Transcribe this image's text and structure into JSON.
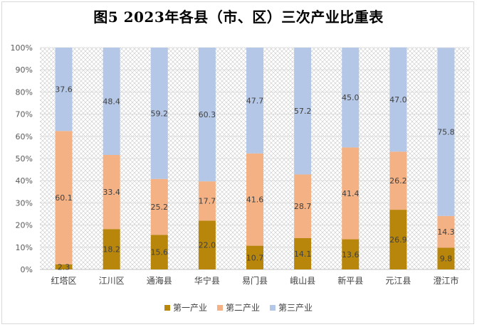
{
  "colors": {
    "primary": "#B8860B",
    "secondary": "#F4B183",
    "tertiary": "#B4C7E7"
  },
  "chart_data": {
    "type": "bar",
    "stacked": true,
    "title": "图5    2023年各县（市、区）三次产业比重表",
    "categories": [
      "红塔区",
      "江川区",
      "通海县",
      "华宁县",
      "易门县",
      "峨山县",
      "新平县",
      "元江县",
      "澄江市"
    ],
    "series": [
      {
        "name": "第一产业",
        "values": [
          2.3,
          18.2,
          15.6,
          22.0,
          10.7,
          14.1,
          13.6,
          26.9,
          9.8
        ]
      },
      {
        "name": "第二产业",
        "values": [
          60.1,
          33.4,
          25.2,
          17.7,
          41.6,
          28.7,
          41.4,
          26.2,
          14.3
        ]
      },
      {
        "name": "第三产业",
        "values": [
          37.6,
          48.4,
          59.2,
          60.3,
          47.7,
          57.2,
          45.0,
          47.0,
          75.8
        ]
      }
    ],
    "y_ticks": [
      "0%",
      "10%",
      "20%",
      "30%",
      "40%",
      "50%",
      "60%",
      "70%",
      "80%",
      "90%",
      "100%"
    ],
    "ylim": [
      0,
      100
    ],
    "grid": true,
    "legend_position": "bottom"
  }
}
